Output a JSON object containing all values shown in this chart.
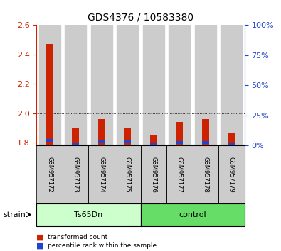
{
  "title": "GDS4376 / 10583380",
  "samples": [
    "GSM957172",
    "GSM957173",
    "GSM957174",
    "GSM957175",
    "GSM957176",
    "GSM957177",
    "GSM957178",
    "GSM957179"
  ],
  "red_values": [
    2.47,
    1.9,
    1.96,
    1.9,
    1.85,
    1.94,
    1.96,
    1.87
  ],
  "blue_percentiles": [
    5.5,
    2.0,
    4.5,
    4.5,
    2.5,
    4.0,
    4.0,
    2.5
  ],
  "ylim_left": [
    1.78,
    2.6
  ],
  "ylim_right": [
    0,
    100
  ],
  "yticks_left": [
    1.8,
    2.0,
    2.2,
    2.4,
    2.6
  ],
  "yticks_right": [
    0,
    25,
    50,
    75,
    100
  ],
  "ytick_labels_right": [
    "0%",
    "25%",
    "50%",
    "75%",
    "100%"
  ],
  "bar_bottom": 1.78,
  "group1_label": "Ts65Dn",
  "group2_label": "control",
  "group1_indices": [
    0,
    1,
    2,
    3
  ],
  "group2_indices": [
    4,
    5,
    6,
    7
  ],
  "strain_label": "strain",
  "legend_red_label": "transformed count",
  "legend_blue_label": "percentile rank within the sample",
  "red_color": "#cc2200",
  "blue_color": "#2244cc",
  "group1_color": "#ccffcc",
  "group2_color": "#66dd66",
  "bar_bg_color": "#cccccc",
  "title_fontsize": 10,
  "tick_fontsize": 8,
  "sample_fontsize": 6
}
